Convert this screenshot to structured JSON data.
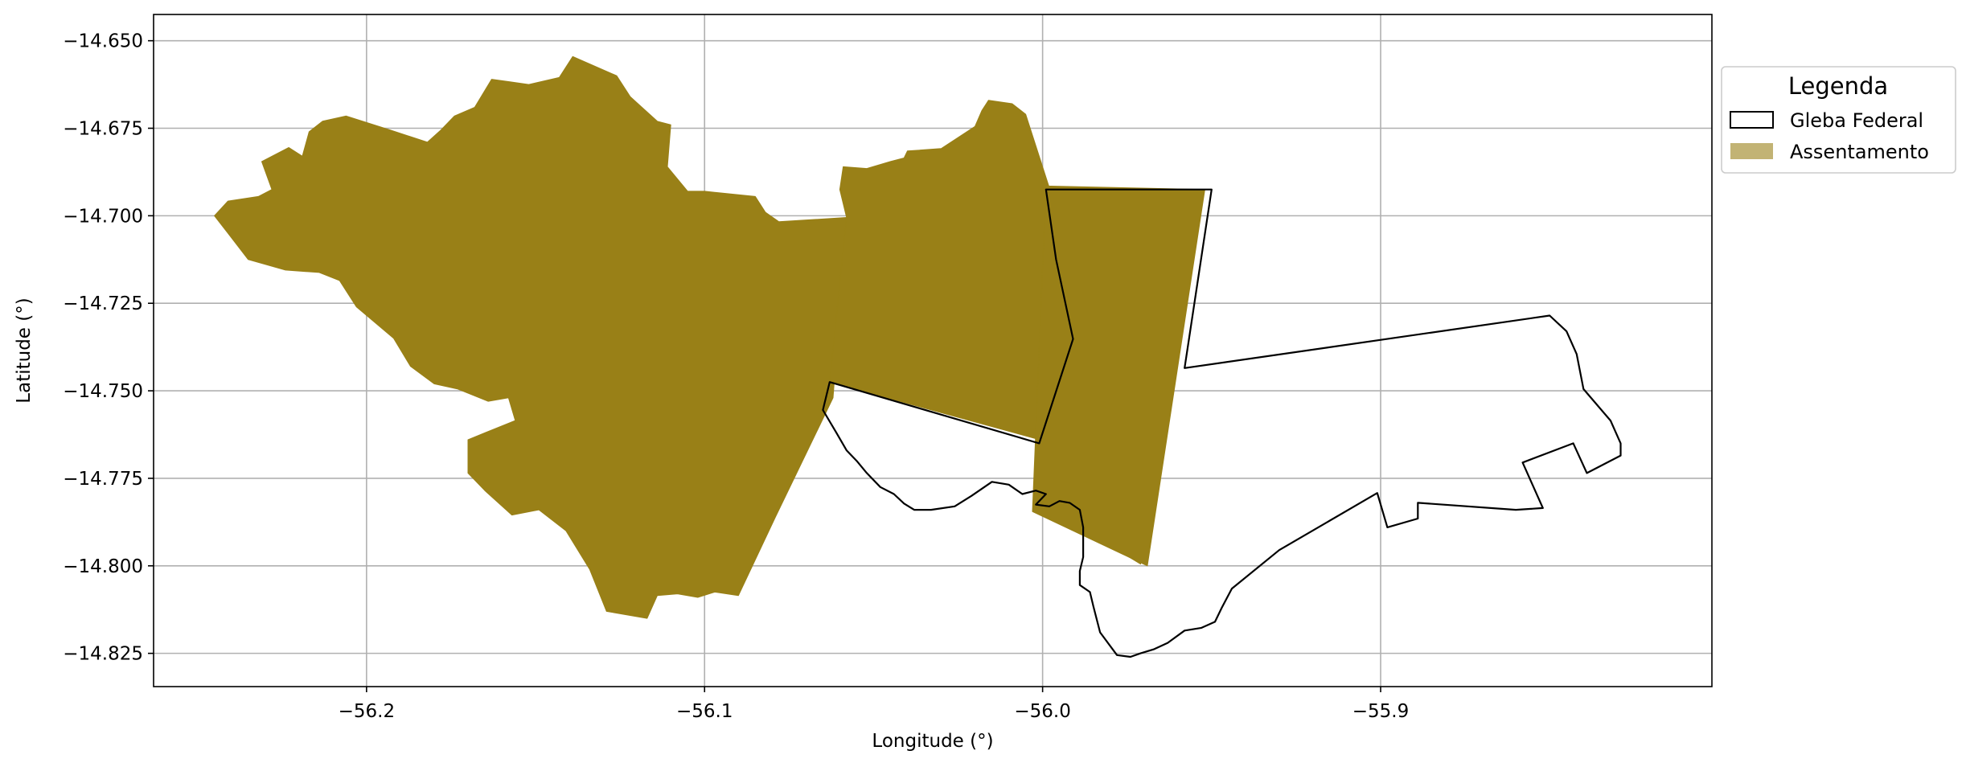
{
  "chart_data": {
    "type": "map",
    "xlabel": "Longitude (°)",
    "ylabel": "Latitude (°)",
    "xlim": [
      -56.263,
      -55.802
    ],
    "ylim": [
      -14.8345,
      -14.6425
    ],
    "xticks": [
      -56.2,
      -56.1,
      -56.0,
      -55.9
    ],
    "xtick_labels": [
      "−56.2",
      "−56.1",
      "−56.0",
      "−55.9"
    ],
    "yticks": [
      -14.65,
      -14.675,
      -14.7,
      -14.725,
      -14.75,
      -14.775,
      -14.8,
      -14.825
    ],
    "ytick_labels": [
      "−14.650",
      "−14.675",
      "−14.700",
      "−14.725",
      "−14.750",
      "−14.775",
      "−14.800",
      "−14.825"
    ],
    "grid": true,
    "legend": {
      "title": "Legenda",
      "placement": "outside-right-top",
      "entries": [
        {
          "label": "Gleba Federal",
          "style": "outline",
          "color": "#000000"
        },
        {
          "label": "Assentamento",
          "style": "fill",
          "color": "#998017"
        }
      ]
    },
    "colors": {
      "assentamento_fill": "#998017",
      "gleba_stroke": "#000000",
      "grid": "#b0b0b0"
    },
    "layers": [
      {
        "name": "Assentamento",
        "kind": "polygon-fill",
        "color": "#998017",
        "polygons": [
          [
            [
              -56.241,
              -14.6958
            ],
            [
              -56.232,
              -14.6945
            ],
            [
              -56.228,
              -14.6925
            ],
            [
              -56.231,
              -14.6845
            ],
            [
              -56.223,
              -14.6805
            ],
            [
              -56.219,
              -14.683
            ],
            [
              -56.217,
              -14.676
            ],
            [
              -56.213,
              -14.673
            ],
            [
              -56.206,
              -14.6715
            ],
            [
              -56.193,
              -14.6755
            ],
            [
              -56.182,
              -14.679
            ],
            [
              -56.178,
              -14.6755
            ],
            [
              -56.174,
              -14.6715
            ],
            [
              -56.168,
              -14.669
            ],
            [
              -56.163,
              -14.661
            ],
            [
              -56.152,
              -14.6625
            ],
            [
              -56.143,
              -14.6605
            ],
            [
              -56.139,
              -14.6545
            ],
            [
              -56.126,
              -14.66
            ],
            [
              -56.122,
              -14.666
            ],
            [
              -56.114,
              -14.673
            ],
            [
              -56.11,
              -14.674
            ],
            [
              -56.111,
              -14.686
            ],
            [
              -56.105,
              -14.693
            ],
            [
              -56.1,
              -14.693
            ],
            [
              -56.085,
              -14.6945
            ],
            [
              -56.082,
              -14.699
            ],
            [
              -56.078,
              -14.7017
            ],
            [
              -56.058,
              -14.7005
            ],
            [
              -56.062,
              -14.752
            ],
            [
              -56.079,
              -14.786
            ],
            [
              -56.09,
              -14.8085
            ],
            [
              -56.097,
              -14.8075
            ],
            [
              -56.102,
              -14.809
            ],
            [
              -56.108,
              -14.808
            ],
            [
              -56.114,
              -14.8085
            ],
            [
              -56.117,
              -14.815
            ],
            [
              -56.129,
              -14.813
            ],
            [
              -56.134,
              -14.801
            ],
            [
              -56.141,
              -14.79
            ],
            [
              -56.149,
              -14.784
            ],
            [
              -56.157,
              -14.7855
            ],
            [
              -56.165,
              -14.7785
            ],
            [
              -56.17,
              -14.7735
            ],
            [
              -56.17,
              -14.764
            ],
            [
              -56.165,
              -14.762
            ],
            [
              -56.156,
              -14.7585
            ],
            [
              -56.158,
              -14.752
            ],
            [
              -56.164,
              -14.753
            ],
            [
              -56.173,
              -14.7495
            ],
            [
              -56.18,
              -14.748
            ],
            [
              -56.187,
              -14.743
            ],
            [
              -56.192,
              -14.735
            ],
            [
              -56.203,
              -14.726
            ],
            [
              -56.208,
              -14.7185
            ],
            [
              -56.214,
              -14.7162
            ],
            [
              -56.224,
              -14.7155
            ],
            [
              -56.235,
              -14.7125
            ],
            [
              -56.241,
              -14.705
            ],
            [
              -56.245,
              -14.7
            ],
            [
              -56.241,
              -14.6958
            ]
          ],
          [
            [
              -56.058,
              -14.7005
            ],
            [
              -56.06,
              -14.6925
            ],
            [
              -56.059,
              -14.686
            ],
            [
              -56.052,
              -14.6865
            ],
            [
              -56.045,
              -14.6845
            ],
            [
              -56.041,
              -14.6835
            ],
            [
              -56.04,
              -14.6815
            ],
            [
              -56.03,
              -14.6808
            ],
            [
              -56.02,
              -14.6745
            ],
            [
              -56.018,
              -14.67
            ],
            [
              -56.016,
              -14.667
            ],
            [
              -56.009,
              -14.668
            ],
            [
              -56.005,
              -14.671
            ],
            [
              -55.998,
              -14.692
            ],
            [
              -55.962,
              -14.693
            ],
            [
              -55.971,
              -14.7995
            ],
            [
              -56.0,
              -14.7825
            ],
            [
              -55.997,
              -14.765
            ],
            [
              -56.063,
              -14.7475
            ],
            [
              -56.058,
              -14.7005
            ]
          ],
          [
            [
              -55.999,
              -14.6915
            ],
            [
              -55.952,
              -14.6925
            ],
            [
              -55.969,
              -14.8
            ],
            [
              -56.003,
              -14.7845
            ],
            [
              -55.999,
              -14.6915
            ]
          ]
        ]
      },
      {
        "name": "Gleba Federal",
        "kind": "polygon-outline",
        "color": "#000000",
        "polygons": [
          [
            [
              -55.999,
              -14.6925
            ],
            [
              -55.95,
              -14.6925
            ],
            [
              -55.958,
              -14.7435
            ],
            [
              -55.85,
              -14.7285
            ],
            [
              -55.845,
              -14.733
            ],
            [
              -55.842,
              -14.7395
            ],
            [
              -55.84,
              -14.7495
            ],
            [
              -55.836,
              -14.754
            ],
            [
              -55.832,
              -14.7585
            ],
            [
              -55.829,
              -14.765
            ],
            [
              -55.829,
              -14.7685
            ],
            [
              -55.839,
              -14.7735
            ],
            [
              -55.843,
              -14.765
            ],
            [
              -55.858,
              -14.7705
            ],
            [
              -55.852,
              -14.7835
            ],
            [
              -55.86,
              -14.784
            ],
            [
              -55.889,
              -14.782
            ],
            [
              -55.889,
              -14.7865
            ],
            [
              -55.898,
              -14.789
            ],
            [
              -55.901,
              -14.7792
            ],
            [
              -55.93,
              -14.7955
            ],
            [
              -55.944,
              -14.8065
            ],
            [
              -55.947,
              -14.812
            ],
            [
              -55.949,
              -14.816
            ],
            [
              -55.953,
              -14.8177
            ],
            [
              -55.958,
              -14.8185
            ],
            [
              -55.963,
              -14.822
            ],
            [
              -55.967,
              -14.8238
            ],
            [
              -55.971,
              -14.825
            ],
            [
              -55.974,
              -14.826
            ],
            [
              -55.978,
              -14.8255
            ],
            [
              -55.983,
              -14.819
            ],
            [
              -55.985,
              -14.8115
            ],
            [
              -55.986,
              -14.8075
            ],
            [
              -55.989,
              -14.8055
            ],
            [
              -55.989,
              -14.8015
            ],
            [
              -55.988,
              -14.7975
            ],
            [
              -55.988,
              -14.789
            ],
            [
              -55.989,
              -14.784
            ],
            [
              -55.992,
              -14.782
            ],
            [
              -55.995,
              -14.7815
            ],
            [
              -55.998,
              -14.783
            ],
            [
              -56.002,
              -14.7825
            ],
            [
              -55.999,
              -14.7795
            ],
            [
              -56.002,
              -14.7785
            ],
            [
              -56.006,
              -14.7795
            ],
            [
              -56.01,
              -14.7768
            ],
            [
              -56.015,
              -14.776
            ],
            [
              -56.021,
              -14.78
            ],
            [
              -56.026,
              -14.783
            ],
            [
              -56.033,
              -14.784
            ],
            [
              -56.038,
              -14.784
            ],
            [
              -56.041,
              -14.7822
            ],
            [
              -56.044,
              -14.7795
            ],
            [
              -56.048,
              -14.7775
            ],
            [
              -56.052,
              -14.7735
            ],
            [
              -56.055,
              -14.77
            ],
            [
              -56.058,
              -14.767
            ],
            [
              -56.061,
              -14.762
            ],
            [
              -56.065,
              -14.7555
            ],
            [
              -56.063,
              -14.7475
            ],
            [
              -56.001,
              -14.765
            ],
            [
              -55.991,
              -14.7352
            ],
            [
              -55.996,
              -14.7125
            ],
            [
              -55.999,
              -14.6925
            ]
          ]
        ]
      }
    ]
  }
}
